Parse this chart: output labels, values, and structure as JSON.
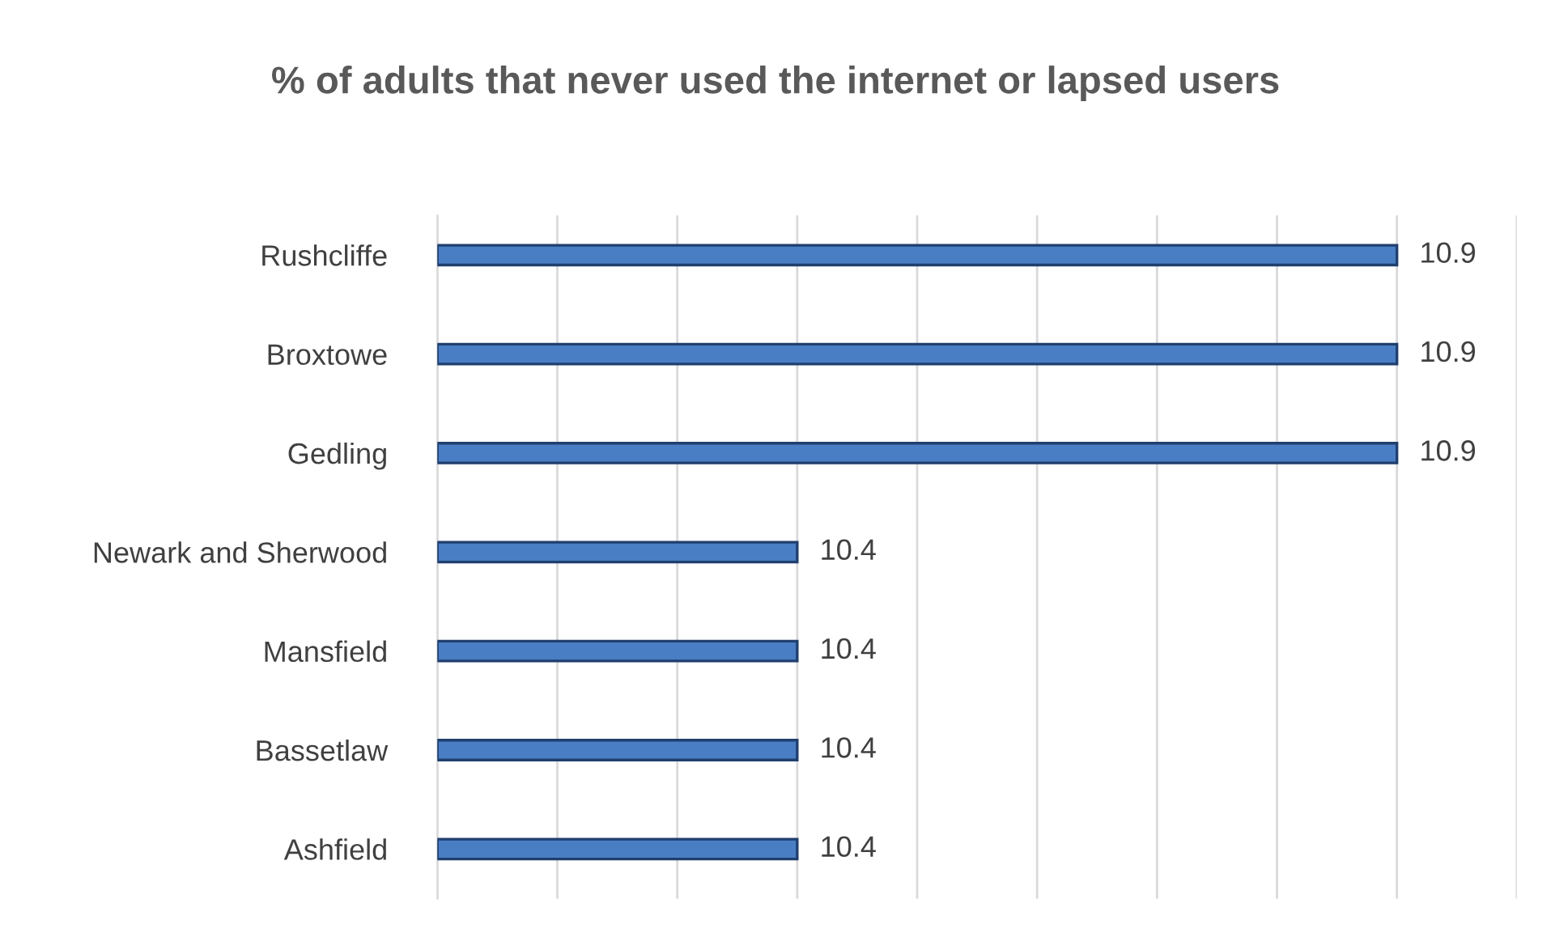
{
  "chart_data": {
    "type": "bar",
    "orientation": "horizontal",
    "title": "% of adults that never used the internet or lapsed users",
    "categories": [
      "Rushcliffe",
      "Broxtowe",
      "Gedling",
      "Newark and Sherwood",
      "Mansfield",
      "Bassetlaw",
      "Ashfield"
    ],
    "values": [
      10.9,
      10.9,
      10.9,
      10.4,
      10.4,
      10.4,
      10.4
    ],
    "color": "#4a7ec4",
    "xlim": [
      10.1,
      11.0
    ],
    "xticks": [
      10.1,
      10.2,
      10.3,
      10.4,
      10.5,
      10.6,
      10.7,
      10.8,
      10.9,
      11.0
    ],
    "grid": "x",
    "tick_labels": "y",
    "data_labels": true
  }
}
